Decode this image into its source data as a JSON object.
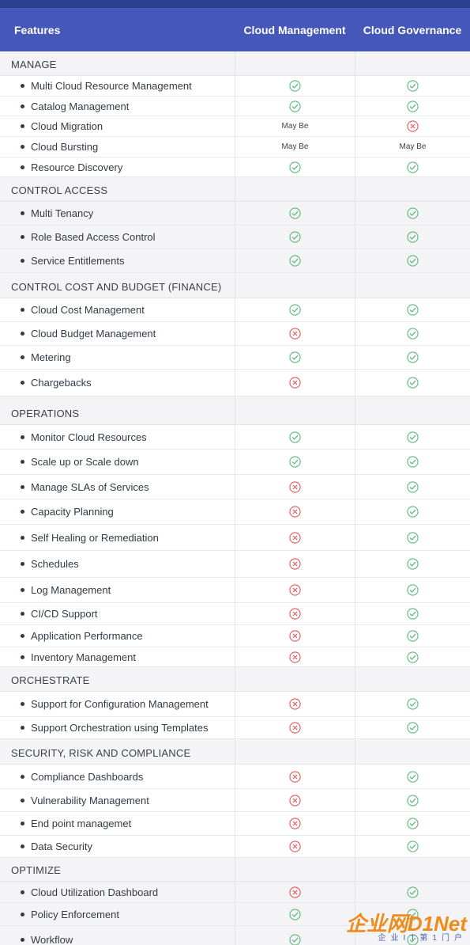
{
  "header": {
    "features": "Features",
    "cloud_management": "Cloud Management",
    "cloud_governance": "Cloud Governance"
  },
  "colors": {
    "header_bg": "#4557b8",
    "top_bar": "#2c3f8f",
    "check": "#5cb87a",
    "cross": "#e05a5a"
  },
  "sections": [
    {
      "title": "MANAGE",
      "rows": [
        {
          "label": "Multi Cloud Resource Management",
          "cm": "check",
          "cg": "check"
        },
        {
          "label": "Catalog Management",
          "cm": "check",
          "cg": "check"
        },
        {
          "label": "Cloud Migration",
          "cm": "May Be",
          "cg": "cross"
        },
        {
          "label": "Cloud Bursting",
          "cm": "May Be",
          "cg": "May Be"
        },
        {
          "label": "Resource Discovery",
          "cm": "check",
          "cg": "check"
        }
      ]
    },
    {
      "title": "CONTROL ACCESS",
      "rows": [
        {
          "label": "Multi Tenancy",
          "cm": "check",
          "cg": "check"
        },
        {
          "label": "Role Based Access Control",
          "cm": "check",
          "cg": "check"
        },
        {
          "label": "Service Entitlements",
          "cm": "check",
          "cg": "check"
        }
      ]
    },
    {
      "title": "CONTROL COST AND BUDGET (FINANCE)",
      "rows": [
        {
          "label": "Cloud Cost Management",
          "cm": "check",
          "cg": "check"
        },
        {
          "label": "Cloud Budget Management",
          "cm": "cross",
          "cg": "check"
        },
        {
          "label": "Metering",
          "cm": "check",
          "cg": "check"
        },
        {
          "label": "Chargebacks",
          "cm": "cross",
          "cg": "check"
        }
      ]
    },
    {
      "title": "OPERATIONS",
      "rows": [
        {
          "label": "Monitor Cloud Resources",
          "cm": "check",
          "cg": "check"
        },
        {
          "label": "Scale up or Scale down",
          "cm": "check",
          "cg": "check"
        },
        {
          "label": "Manage SLAs of Services",
          "cm": "cross",
          "cg": "check"
        },
        {
          "label": "Capacity Planning",
          "cm": "cross",
          "cg": "check"
        },
        {
          "label": "Self Healing or Remediation",
          "cm": "cross",
          "cg": "check"
        },
        {
          "label": "Schedules",
          "cm": "cross",
          "cg": "check"
        },
        {
          "label": "Log Management",
          "cm": "cross",
          "cg": "check"
        },
        {
          "label": "CI/CD Support",
          "cm": "cross",
          "cg": "check"
        },
        {
          "label": "Application Performance",
          "cm": "cross",
          "cg": "check"
        },
        {
          "label": "Inventory Management",
          "cm": "cross",
          "cg": "check"
        }
      ]
    },
    {
      "title": "ORCHESTRATE",
      "rows": [
        {
          "label": "Support for Configuration Management",
          "cm": "cross",
          "cg": "check"
        },
        {
          "label": "Support Orchestration using Templates",
          "cm": "cross",
          "cg": "check"
        }
      ]
    },
    {
      "title": "SECURITY, RISK AND COMPLIANCE",
      "rows": [
        {
          "label": "Compliance Dashboards",
          "cm": "cross",
          "cg": "check"
        },
        {
          "label": "Vulnerability Management",
          "cm": "cross",
          "cg": "check"
        },
        {
          "label": "End point managemet",
          "cm": "cross",
          "cg": "check"
        },
        {
          "label": "Data Security",
          "cm": "cross",
          "cg": "check"
        }
      ]
    },
    {
      "title": "OPTIMIZE",
      "rows": [
        {
          "label": "Cloud Utilization Dashboard",
          "cm": "cross",
          "cg": "check"
        },
        {
          "label": "Policy Enforcement",
          "cm": "check",
          "cg": "check"
        },
        {
          "label": "Workflow",
          "cm": "check",
          "cg": "check"
        }
      ]
    }
  ],
  "watermark": {
    "main": "企业网D1Net",
    "sub": "企业IT第1门户"
  }
}
